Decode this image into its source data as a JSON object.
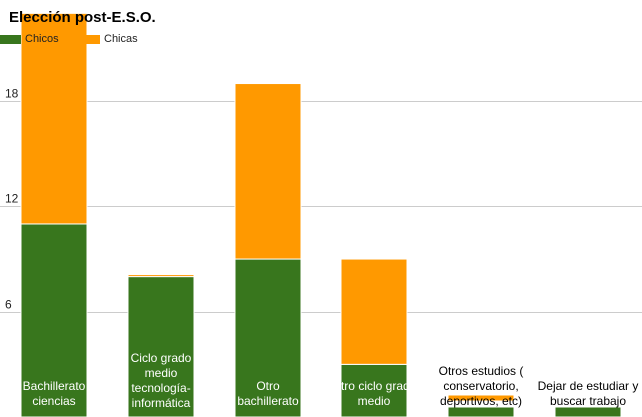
{
  "chart_data": {
    "type": "bar",
    "stacked": true,
    "title": "Elección post-E.S.O.",
    "categories": [
      "Bachillerato ciencias",
      "Ciclo grado medio tecnología-informática",
      "Otro bachillerato",
      "Otro ciclo grado medio",
      "Otros estudios ( conservatorio, deportivos, etc)",
      "Dejar de estudiar y buscar trabajo"
    ],
    "series": [
      {
        "name": "Chicos",
        "color": "#38761d",
        "values": [
          11,
          8,
          9,
          3,
          0,
          0
        ]
      },
      {
        "name": "Chicas",
        "color": "#ff9900",
        "values": [
          12,
          0,
          10,
          6,
          0,
          0
        ]
      }
    ],
    "ylim": [
      0,
      20.5
    ],
    "yticks": [
      "6",
      "12",
      "18"
    ],
    "ytick_values": [
      6,
      12,
      18
    ],
    "legend_position": "top-left",
    "grid": true
  }
}
